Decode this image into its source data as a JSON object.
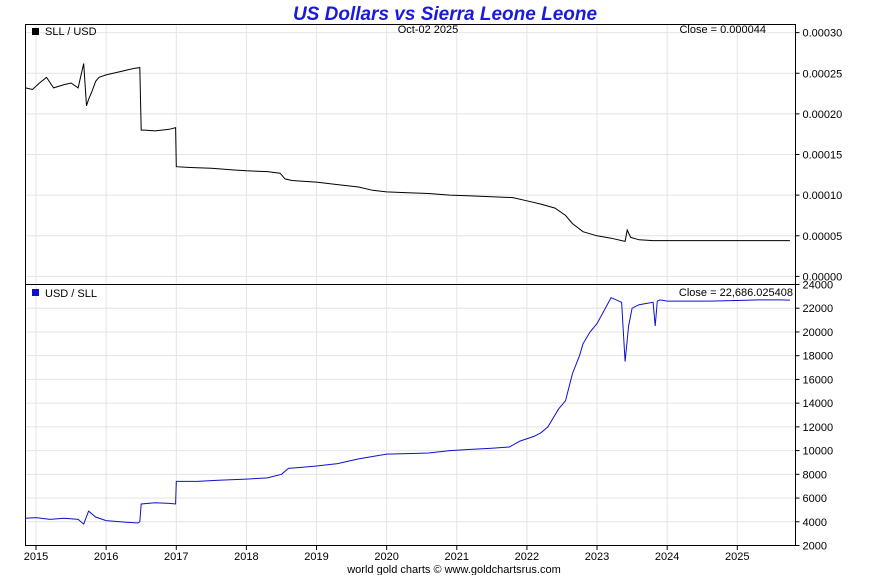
{
  "title": "US Dollars vs Sierra Leone Leone",
  "date": "Oct-02  2025",
  "footer": "world gold charts © www.goldchartsrus.com",
  "colors": {
    "title": "#1a1adb",
    "series1": "#000000",
    "series2": "#1010cc",
    "grid": "#e4e4e4"
  },
  "chart_data": [
    {
      "type": "line",
      "title": "SLL / USD",
      "legend": "SLL / USD",
      "close_label": "Close = 0.000044",
      "ylim": [
        -1e-05,
        0.00031
      ],
      "yticks": [
        "0.00030",
        "0.00025",
        "0.00020",
        "0.00015",
        "0.00010",
        "0.00005",
        "0.00000"
      ],
      "ytick_values": [
        0.0003,
        0.00025,
        0.0002,
        0.00015,
        0.0001,
        5e-05,
        0.0
      ],
      "series": [
        {
          "name": "SLL / USD",
          "x": [
            2014.85,
            2014.95,
            2015.05,
            2015.15,
            2015.25,
            2015.4,
            2015.5,
            2015.6,
            2015.68,
            2015.72,
            2015.75,
            2015.8,
            2015.85,
            2015.9,
            2016.0,
            2016.2,
            2016.4,
            2016.48,
            2016.5,
            2016.55,
            2016.7,
            2016.9,
            2016.99,
            2017.0,
            2017.2,
            2017.5,
            2017.8,
            2018.0,
            2018.3,
            2018.48,
            2018.55,
            2018.65,
            2018.8,
            2019.0,
            2019.3,
            2019.6,
            2019.8,
            2020.0,
            2020.3,
            2020.6,
            2020.9,
            2021.2,
            2021.5,
            2021.8,
            2022.0,
            2022.2,
            2022.4,
            2022.55,
            2022.65,
            2022.8,
            2023.0,
            2023.2,
            2023.4,
            2023.43,
            2023.48,
            2023.6,
            2023.8,
            2024.0,
            2024.3,
            2024.6,
            2025.0,
            2025.3,
            2025.6,
            2025.75
          ],
          "values": [
            0.000232,
            0.00023,
            0.000238,
            0.000245,
            0.000232,
            0.000236,
            0.000238,
            0.000232,
            0.000262,
            0.00021,
            0.000218,
            0.000228,
            0.00024,
            0.000245,
            0.000248,
            0.000252,
            0.000256,
            0.000257,
            0.00018,
            0.00018,
            0.000179,
            0.000181,
            0.000183,
            0.000135,
            0.000134,
            0.000133,
            0.000131,
            0.00013,
            0.000129,
            0.000127,
            0.00012,
            0.000118,
            0.000117,
            0.000116,
            0.000113,
            0.00011,
            0.000106,
            0.000104,
            0.000103,
            0.000102,
            0.0001,
            9.9e-05,
            9.8e-05,
            9.7e-05,
            9.3e-05,
            8.9e-05,
            8.4e-05,
            7.5e-05,
            6.5e-05,
            5.5e-05,
            5e-05,
            4.7e-05,
            4.3e-05,
            5.7e-05,
            4.8e-05,
            4.5e-05,
            4.4e-05,
            4.4e-05,
            4.4e-05,
            4.4e-05,
            4.4e-05,
            4.4e-05,
            4.4e-05,
            4.4e-05
          ]
        }
      ]
    },
    {
      "type": "line",
      "title": "USD / SLL",
      "legend": "USD / SLL",
      "close_label": "Close = 22,686.025408",
      "ylim": [
        2000,
        24000
      ],
      "yticks": [
        "24000",
        "22000",
        "20000",
        "18000",
        "16000",
        "14000",
        "12000",
        "10000",
        "8000",
        "6000",
        "4000",
        "2000"
      ],
      "ytick_values": [
        24000,
        22000,
        20000,
        18000,
        16000,
        14000,
        12000,
        10000,
        8000,
        6000,
        4000,
        2000
      ],
      "series": [
        {
          "name": "USD / SLL",
          "x": [
            2014.85,
            2015.0,
            2015.2,
            2015.4,
            2015.6,
            2015.68,
            2015.75,
            2015.85,
            2016.0,
            2016.2,
            2016.45,
            2016.48,
            2016.5,
            2016.7,
            2016.9,
            2016.99,
            2017.0,
            2017.3,
            2017.6,
            2018.0,
            2018.3,
            2018.5,
            2018.6,
            2018.8,
            2019.0,
            2019.3,
            2019.6,
            2019.8,
            2020.0,
            2020.3,
            2020.6,
            2020.9,
            2021.2,
            2021.5,
            2021.75,
            2021.9,
            2022.1,
            2022.2,
            2022.3,
            2022.45,
            2022.55,
            2022.65,
            2022.75,
            2022.8,
            2022.9,
            2023.0,
            2023.2,
            2023.35,
            2023.4,
            2023.45,
            2023.5,
            2023.6,
            2023.7,
            2023.8,
            2023.83,
            2023.86,
            2023.9,
            2024.0,
            2024.3,
            2024.6,
            2025.0,
            2025.3,
            2025.6,
            2025.75
          ],
          "values": [
            4300,
            4350,
            4200,
            4300,
            4200,
            3800,
            4900,
            4400,
            4100,
            4000,
            3900,
            4000,
            5500,
            5600,
            5550,
            5500,
            7400,
            7400,
            7500,
            7600,
            7700,
            8000,
            8500,
            8600,
            8700,
            8900,
            9300,
            9500,
            9700,
            9750,
            9800,
            10000,
            10100,
            10200,
            10300,
            10800,
            11200,
            11500,
            12000,
            13500,
            14200,
            16500,
            18000,
            19000,
            20000,
            20700,
            22900,
            22500,
            17500,
            20500,
            22000,
            22300,
            22400,
            22500,
            20500,
            22600,
            22700,
            22600,
            22600,
            22600,
            22650,
            22700,
            22700,
            22686
          ]
        }
      ]
    }
  ],
  "x_axis": {
    "ticks": [
      "2015",
      "2016",
      "2017",
      "2018",
      "2019",
      "2020",
      "2021",
      "2022",
      "2023",
      "2024",
      "2025"
    ],
    "tick_values": [
      2015,
      2016,
      2017,
      2018,
      2019,
      2020,
      2021,
      2022,
      2023,
      2024,
      2025
    ],
    "xlim": [
      2014.85,
      2025.83
    ]
  }
}
